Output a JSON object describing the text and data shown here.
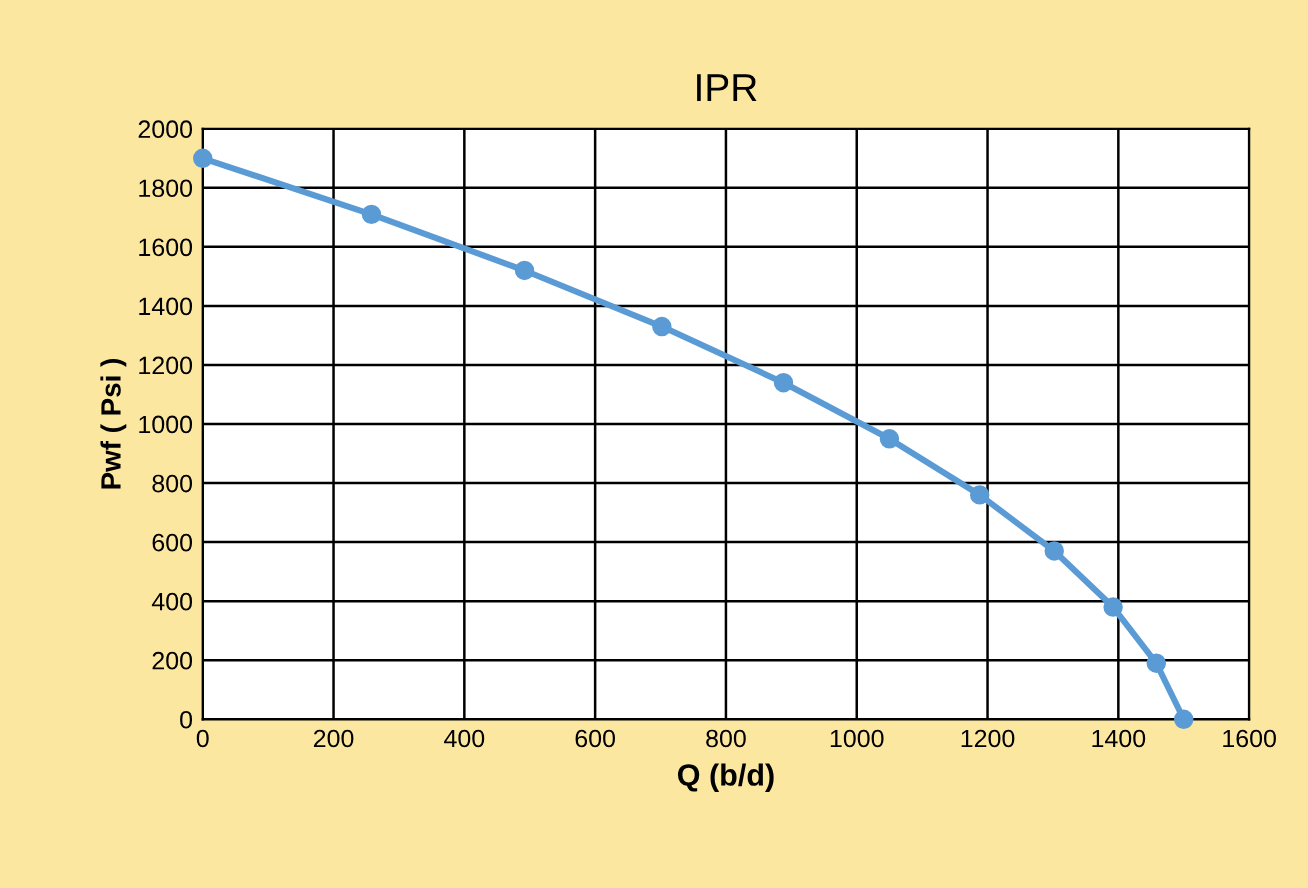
{
  "chart_data": {
    "type": "line",
    "title": "IPR",
    "xlabel": "Q (b/d)",
    "ylabel": "Pwf ( Psi )",
    "x": [
      0,
      258,
      492,
      702,
      888,
      1050,
      1188,
      1302,
      1392,
      1458,
      1500
    ],
    "series": [
      {
        "color": "#5b9bd5",
        "values": [
          1900,
          1710,
          1520,
          1330,
          1140,
          950,
          760,
          570,
          380,
          190,
          0
        ]
      }
    ],
    "xlim": [
      0,
      1600
    ],
    "xticks": [
      0,
      200,
      400,
      600,
      800,
      1000,
      1200,
      1400,
      1600
    ],
    "ylim": [
      0,
      2000
    ],
    "yticks": [
      0,
      200,
      400,
      600,
      800,
      1000,
      1200,
      1400,
      1600,
      1800,
      2000
    ],
    "grid": true,
    "marker": "circle",
    "line_style": "solid"
  }
}
